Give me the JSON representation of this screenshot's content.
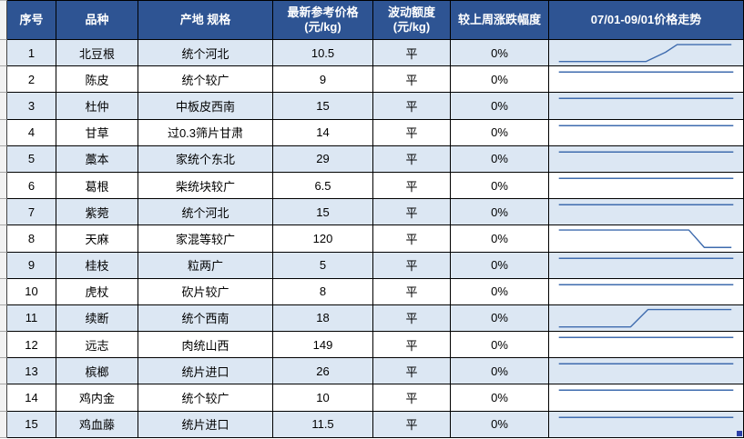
{
  "table": {
    "columns": [
      {
        "key": "index",
        "label": "序号"
      },
      {
        "key": "variety",
        "label": "品种"
      },
      {
        "key": "spec",
        "label": "产地 规格"
      },
      {
        "key": "price",
        "label": "最新参考价格\n(元/kg)"
      },
      {
        "key": "fluct",
        "label": "波动额度\n(元/kg)"
      },
      {
        "key": "change",
        "label": "较上周涨跌幅度"
      },
      {
        "key": "trend",
        "label": "07/01-09/01价格走势"
      }
    ],
    "rows": [
      {
        "index": "1",
        "variety": "北豆根",
        "spec": "统个河北",
        "price": "10.5",
        "fluct": "平",
        "change": "0%",
        "trend": "rise_late"
      },
      {
        "index": "2",
        "variety": "陈皮",
        "spec": "统个较广",
        "price": "9",
        "fluct": "平",
        "change": "0%",
        "trend": "flat"
      },
      {
        "index": "3",
        "variety": "杜仲",
        "spec": "中板皮西南",
        "price": "15",
        "fluct": "平",
        "change": "0%",
        "trend": "flat"
      },
      {
        "index": "4",
        "variety": "甘草",
        "spec": "过0.3筛片甘肃",
        "price": "14",
        "fluct": "平",
        "change": "0%",
        "trend": "flat"
      },
      {
        "index": "5",
        "variety": "藁本",
        "spec": "家统个东北",
        "price": "29",
        "fluct": "平",
        "change": "0%",
        "trend": "flat"
      },
      {
        "index": "6",
        "variety": "葛根",
        "spec": "柴统块较广",
        "price": "6.5",
        "fluct": "平",
        "change": "0%",
        "trend": "flat"
      },
      {
        "index": "7",
        "variety": "紫菀",
        "spec": "统个河北",
        "price": "15",
        "fluct": "平",
        "change": "0%",
        "trend": "flat"
      },
      {
        "index": "8",
        "variety": "天麻",
        "spec": "家混等较广",
        "price": "120",
        "fluct": "平",
        "change": "0%",
        "trend": "drop_late"
      },
      {
        "index": "9",
        "variety": "桂枝",
        "spec": "粒两广",
        "price": "5",
        "fluct": "平",
        "change": "0%",
        "trend": "flat"
      },
      {
        "index": "10",
        "variety": "虎杖",
        "spec": "砍片较广",
        "price": "8",
        "fluct": "平",
        "change": "0%",
        "trend": "flat"
      },
      {
        "index": "11",
        "variety": "续断",
        "spec": "统个西南",
        "price": "18",
        "fluct": "平",
        "change": "0%",
        "trend": "rise_mid"
      },
      {
        "index": "12",
        "variety": "远志",
        "spec": "肉统山西",
        "price": "149",
        "fluct": "平",
        "change": "0%",
        "trend": "flat"
      },
      {
        "index": "13",
        "variety": "槟榔",
        "spec": "统片进口",
        "price": "26",
        "fluct": "平",
        "change": "0%",
        "trend": "flat"
      },
      {
        "index": "14",
        "variety": "鸡内金",
        "spec": "统个较广",
        "price": "10",
        "fluct": "平",
        "change": "0%",
        "trend": "flat"
      },
      {
        "index": "15",
        "variety": "鸡血藤",
        "spec": "统片进口",
        "price": "11.5",
        "fluct": "平",
        "change": "0%",
        "trend": "flat"
      }
    ]
  },
  "sparklines": {
    "flat": [
      [
        0.05,
        0.22
      ],
      [
        0.95,
        0.22
      ]
    ],
    "rise_late": [
      [
        0.05,
        0.84
      ],
      [
        0.5,
        0.84
      ],
      [
        0.6,
        0.48
      ],
      [
        0.66,
        0.18
      ],
      [
        0.94,
        0.18
      ]
    ],
    "drop_late": [
      [
        0.05,
        0.18
      ],
      [
        0.72,
        0.18
      ],
      [
        0.8,
        0.86
      ],
      [
        0.94,
        0.86
      ]
    ],
    "rise_mid": [
      [
        0.05,
        0.84
      ],
      [
        0.42,
        0.84
      ],
      [
        0.51,
        0.16
      ],
      [
        0.94,
        0.16
      ]
    ]
  },
  "colors": {
    "header_bg": "#2E5493",
    "header_text": "#FFFFFF",
    "row_alt_bg": "#DCE7F3",
    "row_bg": "#FFFFFF",
    "grid_border": "#000000",
    "sparkline": "#3E6BAE",
    "fill_handle": "#2D41A8",
    "edge_bg": "#F2F2F2"
  },
  "fill_handle_on_last_trend_cell": true
}
